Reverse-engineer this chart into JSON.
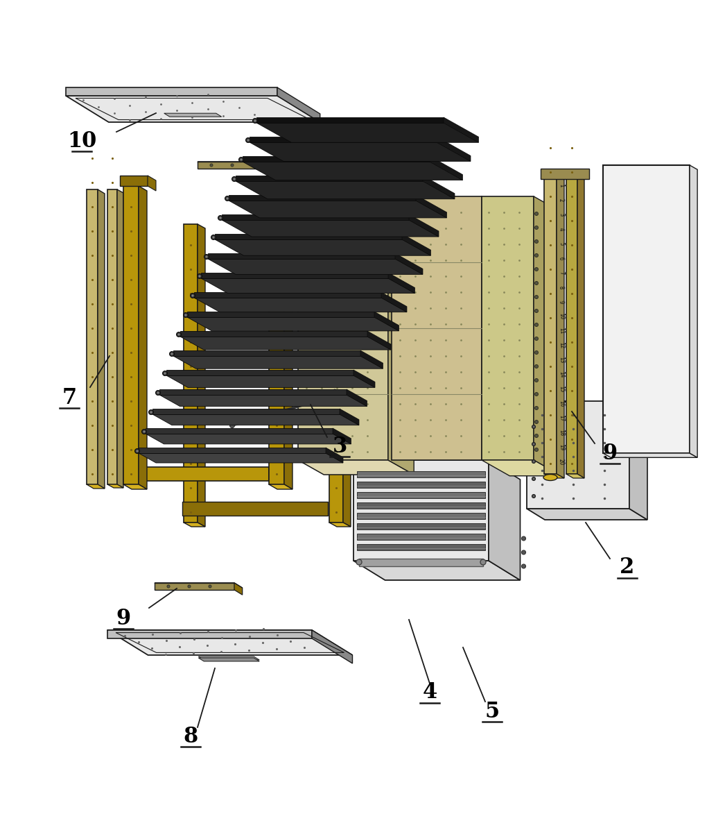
{
  "bg_color": "#ffffff",
  "lc": "#1a1a1a",
  "figsize": [
    10.46,
    11.73
  ],
  "dpi": 100,
  "gold": "#b8960a",
  "gold_dark": "#8a6e08",
  "gold_light": "#d4b020",
  "gray_light": "#e8e8e8",
  "gray_mid": "#c0c0c0",
  "gray_dark": "#888888",
  "tan": "#c8b870",
  "tan_dark": "#9a8c50",
  "board_dark": "#1e1e1e",
  "board_mid": "#2e2e2e"
}
